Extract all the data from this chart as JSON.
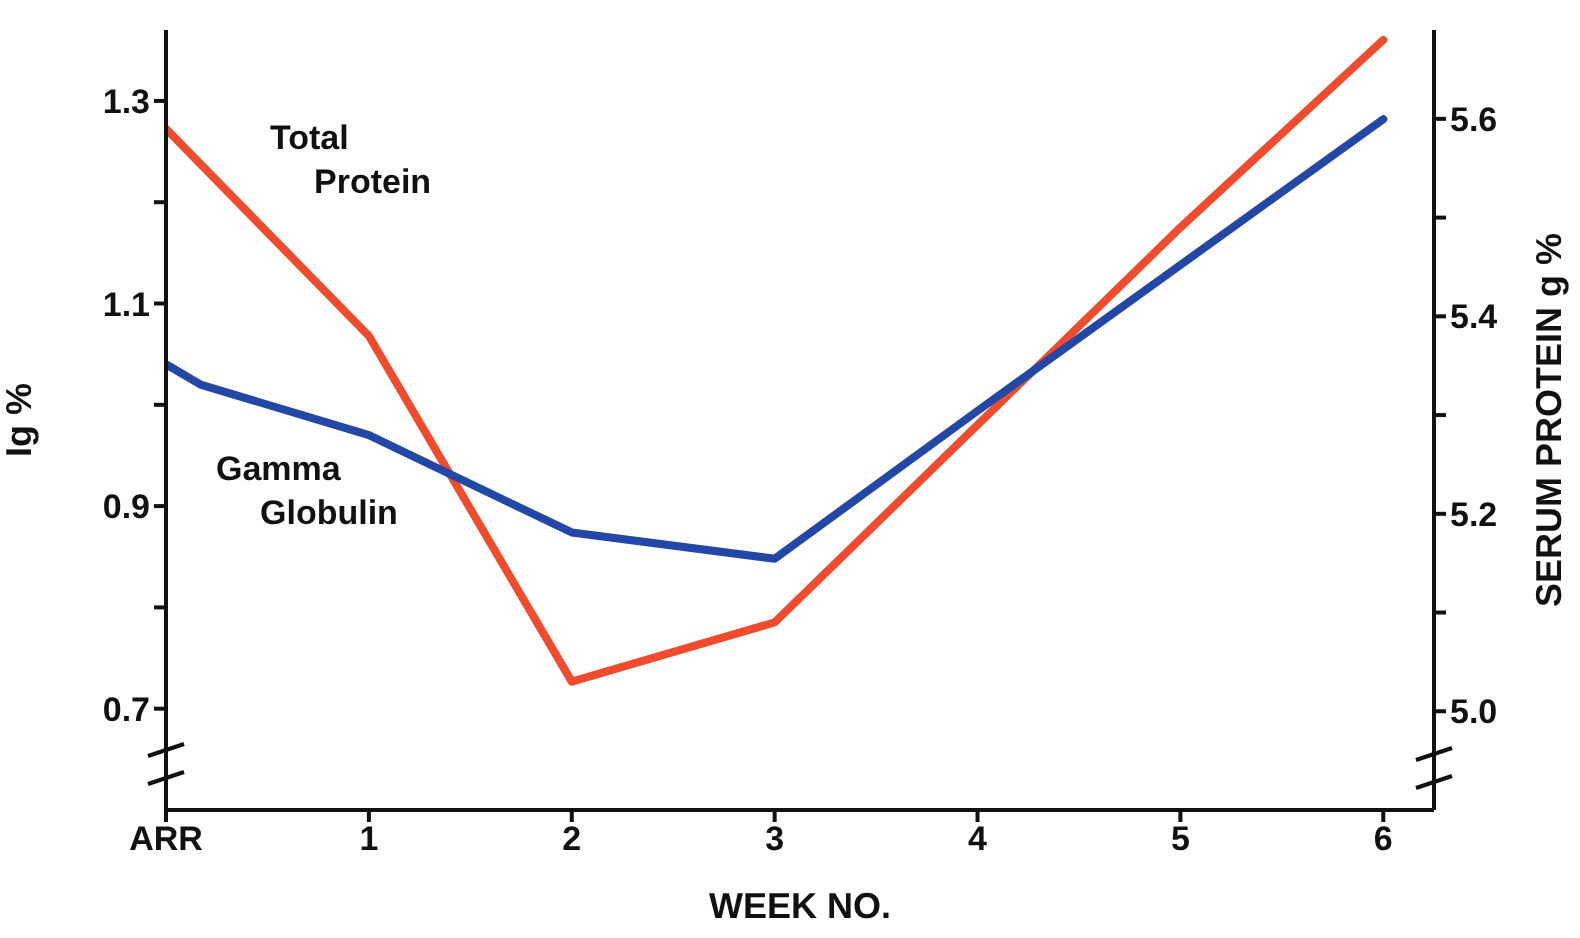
{
  "chart_data": {
    "type": "line",
    "xlabel": "WEEK NO.",
    "ylabel": "Ig %",
    "y2label": "SERUM PROTEIN g %",
    "xlim": [
      0,
      6.25
    ],
    "xticks": [
      {
        "value": 0,
        "label": "ARR"
      },
      1,
      2,
      3,
      4,
      5,
      6
    ],
    "ylim": [
      0.6,
      1.37
    ],
    "yticks": [
      0.7,
      {
        "value": 0.8,
        "label": null
      },
      0.9,
      {
        "value": 1.0,
        "label": null
      },
      1.1,
      {
        "value": 1.2,
        "label": null
      },
      1.3
    ],
    "y2lim": [
      4.9,
      5.69
    ],
    "y2ticks": [
      {
        "value": 5,
        "label": "5.0"
      },
      {
        "value": 5.1,
        "label": null
      },
      5.2,
      {
        "value": 5.3,
        "label": null
      },
      5.4,
      {
        "value": 5.5,
        "label": null
      },
      5.6
    ],
    "series": [
      {
        "name": "Total Protein",
        "color": "#f04b2c",
        "axis": "y2",
        "x": [
          0,
          1,
          2,
          3,
          4,
          5,
          6
        ],
        "values": [
          5.59,
          5.38,
          5.03,
          5.09,
          5.29,
          5.49,
          5.68
        ]
      },
      {
        "name": "Gamma Globulin",
        "color": "#2347a6",
        "x": [
          0,
          0.17,
          1,
          2,
          3,
          4,
          5,
          6
        ],
        "values": [
          1.04,
          1.02,
          0.97,
          0.874,
          0.848,
          0.994,
          1.138,
          1.282
        ]
      }
    ],
    "marker": "none",
    "line_style": "solid"
  }
}
